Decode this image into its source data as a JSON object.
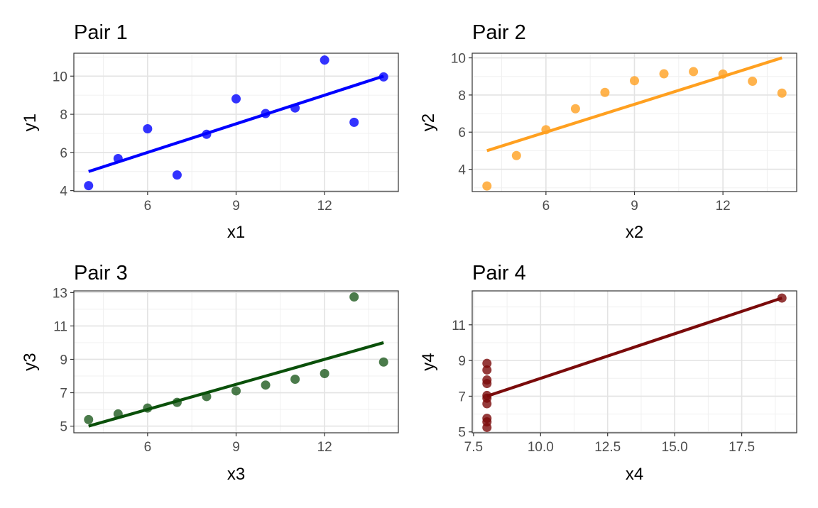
{
  "chart_data": [
    {
      "type": "scatter",
      "title": "Pair 1",
      "xlabel": "x1",
      "ylabel": "y1",
      "color": "#0000FF",
      "xlim": [
        3.5,
        14.5
      ],
      "ylim": [
        3.95,
        11.2
      ],
      "x_major_ticks": [
        6,
        9,
        12
      ],
      "y_major_ticks": [
        4,
        6,
        8,
        10
      ],
      "x_tick_labels": [
        "6",
        "9",
        "12"
      ],
      "y_tick_labels": [
        "4",
        "6",
        "8",
        "10"
      ],
      "grid": true,
      "x": [
        4,
        5,
        6,
        7,
        8,
        9,
        10,
        11,
        12,
        13,
        14
      ],
      "y": [
        4.26,
        5.68,
        7.24,
        4.82,
        6.95,
        8.81,
        8.04,
        8.33,
        10.84,
        7.58,
        9.96
      ],
      "fit_line": [
        [
          4,
          5.0
        ],
        [
          14,
          10.0
        ]
      ]
    },
    {
      "type": "scatter",
      "title": "Pair 2",
      "xlabel": "x2",
      "ylabel": "y2",
      "color": "#FFA020",
      "xlim": [
        3.5,
        14.5
      ],
      "ylim": [
        2.8,
        10.25
      ],
      "x_major_ticks": [
        6,
        9,
        12
      ],
      "y_major_ticks": [
        4,
        6,
        8,
        10
      ],
      "x_tick_labels": [
        "6",
        "9",
        "12"
      ],
      "y_tick_labels": [
        "4",
        "6",
        "8",
        "10"
      ],
      "grid": true,
      "x": [
        4,
        5,
        6,
        7,
        8,
        9,
        10,
        11,
        12,
        13,
        14
      ],
      "y": [
        3.1,
        4.74,
        6.13,
        7.26,
        8.14,
        8.77,
        9.14,
        9.26,
        9.13,
        8.74,
        8.1
      ],
      "fit_line": [
        [
          4,
          5.0
        ],
        [
          14,
          10.0
        ]
      ]
    },
    {
      "type": "scatter",
      "title": "Pair 3",
      "xlabel": "x3",
      "ylabel": "y3",
      "color": "#1E5A1E",
      "line_color": "#0A500A",
      "xlim": [
        3.5,
        14.5
      ],
      "ylim": [
        4.6,
        13.1
      ],
      "x_major_ticks": [
        6,
        9,
        12
      ],
      "y_major_ticks": [
        5,
        7,
        9,
        11,
        13
      ],
      "x_tick_labels": [
        "6",
        "9",
        "12"
      ],
      "y_tick_labels": [
        "5",
        "7",
        "9",
        "11",
        "13"
      ],
      "grid": true,
      "x": [
        4,
        5,
        6,
        7,
        8,
        9,
        10,
        11,
        12,
        13,
        14
      ],
      "y": [
        5.39,
        5.73,
        6.08,
        6.42,
        6.77,
        7.11,
        7.46,
        7.81,
        8.15,
        12.74,
        8.84
      ],
      "fit_line": [
        [
          4,
          5.0
        ],
        [
          14,
          10.0
        ]
      ]
    },
    {
      "type": "scatter",
      "title": "Pair 4",
      "xlabel": "x4",
      "ylabel": "y4",
      "color": "#7A0A0A",
      "xlim": [
        7.45,
        19.55
      ],
      "ylim": [
        4.95,
        12.9
      ],
      "x_major_ticks": [
        7.5,
        10.0,
        12.5,
        15.0,
        17.5
      ],
      "y_major_ticks": [
        5,
        7,
        9,
        11
      ],
      "x_tick_labels": [
        "7.5",
        "10.0",
        "12.5",
        "15.0",
        "17.5"
      ],
      "y_tick_labels": [
        "5",
        "7",
        "9",
        "11"
      ],
      "grid": true,
      "x": [
        8,
        8,
        8,
        8,
        8,
        8,
        8,
        8,
        8,
        8,
        19
      ],
      "y": [
        6.58,
        5.76,
        7.71,
        8.84,
        8.47,
        7.04,
        5.25,
        5.56,
        7.91,
        6.89,
        12.5
      ],
      "fit_line": [
        [
          8,
          7.0
        ],
        [
          19,
          12.5
        ]
      ]
    }
  ]
}
